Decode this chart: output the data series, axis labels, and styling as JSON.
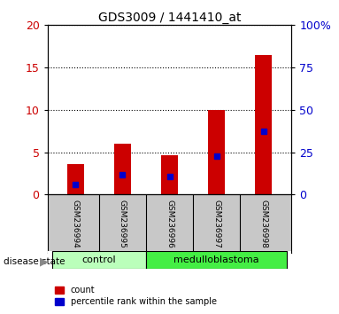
{
  "title": "GDS3009 / 1441410_at",
  "samples": [
    "GSM236994",
    "GSM236995",
    "GSM236996",
    "GSM236997",
    "GSM236998"
  ],
  "count_values": [
    3.6,
    6.0,
    4.7,
    10.0,
    16.5
  ],
  "percentile_values": [
    6,
    11.5,
    10.5,
    23,
    37.5
  ],
  "control_indices": [
    0,
    1
  ],
  "medulloblastoma_indices": [
    2,
    3,
    4
  ],
  "group_label": "disease state",
  "left_ylim": [
    0,
    20
  ],
  "right_ylim": [
    0,
    100
  ],
  "left_yticks": [
    0,
    5,
    10,
    15,
    20
  ],
  "right_yticks": [
    0,
    25,
    50,
    75,
    100
  ],
  "right_yticklabels": [
    "0",
    "25",
    "50",
    "75",
    "100%"
  ],
  "bar_color": "#CC0000",
  "marker_color": "#0000CC",
  "bar_width": 0.35,
  "tick_label_color_left": "#CC0000",
  "tick_label_color_right": "#0000CC",
  "legend_count": "count",
  "legend_percentile": "percentile rank within the sample",
  "bg_plot": "#FFFFFF",
  "bg_label_area": "#C8C8C8",
  "ctrl_color": "#BBFFBB",
  "med_color": "#44EE44"
}
